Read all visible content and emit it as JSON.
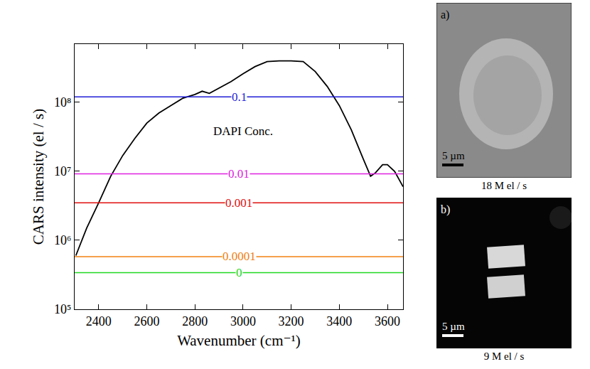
{
  "chart_data": {
    "type": "line",
    "x_label": "Wavenumber (cm⁻¹)",
    "y_label": "CARS intensity (el / s)",
    "log": "y",
    "grid": false,
    "xlim": [
      2300,
      3665
    ],
    "xticks": [
      2400,
      2600,
      2800,
      3000,
      3200,
      3400,
      3600
    ],
    "ylim": [
      100000,
      700000000
    ],
    "yticks": [
      {
        "value": 100000,
        "label": "10⁵"
      },
      {
        "value": 1000000,
        "label": "10⁶"
      },
      {
        "value": 10000000,
        "label": "10⁷"
      },
      {
        "value": 100000000,
        "label": "10⁸"
      }
    ],
    "series": [
      {
        "color": "#000000",
        "x": [
          2305,
          2330,
          2350,
          2400,
          2450,
          2500,
          2550,
          2600,
          2650,
          2700,
          2750,
          2800,
          2830,
          2860,
          2900,
          2950,
          3000,
          3050,
          3100,
          3150,
          3200,
          3250,
          3300,
          3350,
          3400,
          3450,
          3500,
          3530,
          3550,
          3580,
          3600,
          3630,
          3665
        ],
        "values": [
          600000,
          1000000,
          1500000,
          3500000,
          8500000,
          17000000,
          30000000,
          50000000,
          70000000,
          90000000,
          115000000,
          130000000,
          145000000,
          135000000,
          160000000,
          200000000,
          260000000,
          330000000,
          390000000,
          400000000,
          400000000,
          390000000,
          280000000,
          170000000,
          90000000,
          40000000,
          15000000,
          8500000,
          9500000,
          12500000,
          12500000,
          10000000,
          6000000
        ]
      },
      {
        "name": "0.1",
        "color": "#1f1fd8",
        "x": [
          2300,
          3665
        ],
        "values": [
          120000000,
          120000000
        ]
      },
      {
        "name": "0.01",
        "color": "#e020e0",
        "x": [
          2300,
          3665
        ],
        "values": [
          9200000,
          9200000
        ]
      },
      {
        "name": "0.001",
        "color": "#e01010",
        "x": [
          2300,
          3665
        ],
        "values": [
          3500000,
          3500000
        ]
      },
      {
        "name": "0.0001",
        "color": "#f08010",
        "x": [
          2300,
          3665
        ],
        "values": [
          580000,
          580000
        ]
      },
      {
        "name": "0",
        "color": "#20d820",
        "x": [
          2300,
          3665
        ],
        "values": [
          340000,
          340000
        ]
      }
    ],
    "annotations": [
      {
        "text": "DAPI Conc.",
        "x": 3000,
        "y": 38000000
      }
    ],
    "panels": [
      {
        "letter": "a)",
        "scale_bar": "5 µm",
        "caption": "18 M el / s"
      },
      {
        "letter": "b)",
        "scale_bar": "5 µm",
        "caption": "9 M el / s"
      }
    ]
  }
}
